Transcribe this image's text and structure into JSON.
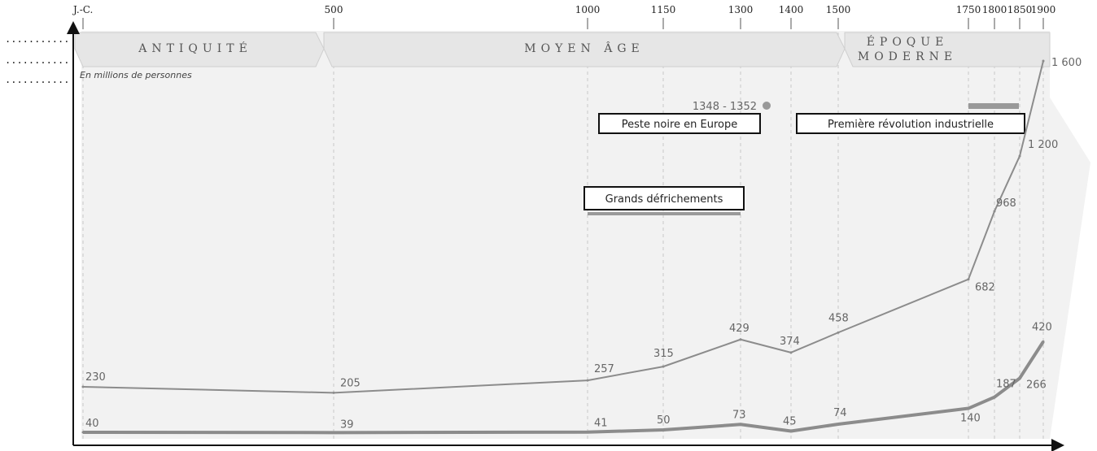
{
  "chart_data": {
    "type": "line",
    "x": [
      0,
      500,
      1000,
      1150,
      1300,
      1400,
      1500,
      1750,
      1800,
      1850,
      1900
    ],
    "x_tick_labels": [
      "J.-C.",
      "500",
      "1000",
      "1150",
      "1300",
      "1400",
      "1500",
      "1750",
      "1800",
      "1850",
      "1900"
    ],
    "series": [
      {
        "values": [
          230,
          205,
          257,
          315,
          429,
          374,
          458,
          682,
          968,
          1200,
          1600
        ],
        "labels": [
          "230",
          "205",
          "257",
          "315",
          "429",
          "374",
          "458",
          "682",
          "968",
          "1 200",
          "1 600"
        ]
      },
      {
        "values": [
          40,
          39,
          41,
          50,
          73,
          45,
          74,
          140,
          187,
          266,
          420
        ],
        "labels": [
          "40",
          "39",
          "41",
          "50",
          "73",
          "45",
          "74",
          "140",
          "187",
          "266",
          "420"
        ]
      }
    ],
    "unit_label": "En millions de personnes",
    "eras": [
      "ANTIQUITÉ",
      "MOYEN ÂGE",
      "ÉPOQUE",
      "MODERNE"
    ],
    "event_date": "1348 - 1352",
    "annotations": [
      "Peste noire en Europe",
      "Première révolution industrielle",
      "Grands défrichements"
    ],
    "blank_lines": [
      "...........",
      "...........",
      "..........."
    ],
    "colors": {
      "series_1": "#8c8c8c",
      "series_2": "#8c8c8c",
      "band": "#e0e0e0",
      "plot_bg": "#f2f2f2"
    }
  }
}
